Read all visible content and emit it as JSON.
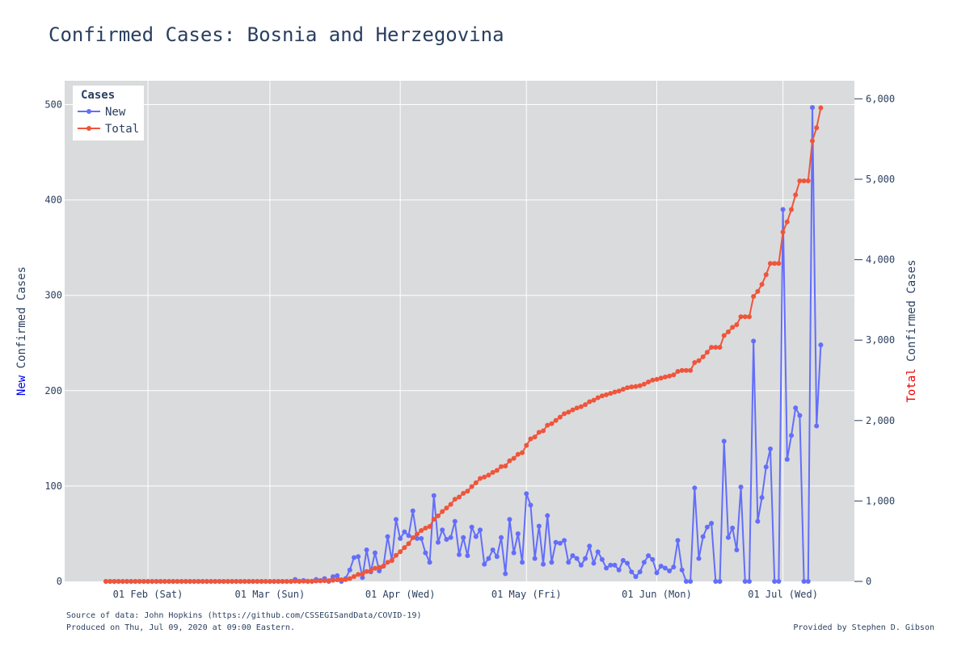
{
  "chart_data": {
    "type": "line",
    "title": "Confirmed Cases: Bosnia and Herzegovina",
    "x_axis": {
      "start_date": "2020-01-22",
      "end_date": "2020-07-08",
      "ticks": [
        {
          "date": "2020-02-01",
          "label": "01 Feb (Sat)"
        },
        {
          "date": "2020-03-01",
          "label": "01 Mar (Sun)"
        },
        {
          "date": "2020-04-01",
          "label": "01 Apr (Wed)"
        },
        {
          "date": "2020-05-01",
          "label": "01 May (Fri)"
        },
        {
          "date": "2020-06-01",
          "label": "01 Jun (Mon)"
        },
        {
          "date": "2020-07-01",
          "label": "01 Jul (Wed)"
        }
      ]
    },
    "y_left": {
      "title_highlight": "New",
      "title_rest": " Confirmed Cases",
      "highlight_color": "#0000ee",
      "range": [
        0,
        525
      ],
      "ticks": [
        0,
        100,
        200,
        300,
        400,
        500
      ],
      "tick_labels": [
        "0",
        "100",
        "200",
        "300",
        "400",
        "500"
      ]
    },
    "y_right": {
      "title_highlight": "Total",
      "title_rest": " Confirmed Cases",
      "highlight_color": "#ee0000",
      "range": [
        0,
        6225
      ],
      "ticks": [
        0,
        1000,
        2000,
        3000,
        4000,
        5000,
        6000
      ],
      "tick_labels": [
        "0",
        "1,000",
        "2,000",
        "3,000",
        "4,000",
        "5,000",
        "6,000"
      ]
    },
    "legend": {
      "title": "Cases",
      "placement": "top-left",
      "entries": [
        "New",
        "Total"
      ]
    },
    "grid": true,
    "series": [
      {
        "name": "New",
        "axis": "left",
        "color": "#636efa",
        "start_date": "2020-01-22",
        "values": [
          0,
          0,
          0,
          0,
          0,
          0,
          0,
          0,
          0,
          0,
          0,
          0,
          0,
          0,
          0,
          0,
          0,
          0,
          0,
          0,
          0,
          0,
          0,
          0,
          0,
          0,
          0,
          0,
          0,
          0,
          0,
          0,
          0,
          0,
          0,
          0,
          0,
          0,
          0,
          0,
          0,
          0,
          0,
          0,
          0,
          2,
          0,
          1,
          0,
          0,
          2,
          1,
          3,
          0,
          5,
          6,
          0,
          3,
          12,
          25,
          26,
          4,
          33,
          10,
          30,
          11,
          16,
          47,
          22,
          65,
          45,
          52,
          48,
          74,
          45,
          45,
          30,
          20,
          90,
          41,
          54,
          44,
          46,
          63,
          28,
          46,
          27,
          57,
          47,
          54,
          18,
          24,
          33,
          26,
          46,
          8,
          65,
          30,
          50,
          20,
          92,
          80,
          24,
          58,
          18,
          69,
          20,
          41,
          40,
          43,
          20,
          27,
          24,
          17,
          24,
          37,
          19,
          31,
          23,
          14,
          17,
          17,
          12,
          22,
          19,
          10,
          5,
          10,
          20,
          27,
          23,
          9,
          16,
          14,
          11,
          15,
          43,
          12,
          0,
          0,
          98,
          24,
          47,
          57,
          61,
          0,
          0,
          147,
          46,
          56,
          33,
          99,
          0,
          0,
          252,
          63,
          88,
          120,
          139,
          0,
          0,
          390,
          128,
          153,
          182,
          174,
          0,
          0,
          497,
          163,
          248
        ]
      },
      {
        "name": "Total",
        "axis": "right",
        "color": "#ef553b",
        "start_date": "2020-01-22",
        "values": [
          0,
          0,
          0,
          0,
          0,
          0,
          0,
          0,
          0,
          0,
          0,
          0,
          0,
          0,
          0,
          0,
          0,
          0,
          0,
          0,
          0,
          0,
          0,
          0,
          0,
          0,
          0,
          0,
          0,
          0,
          0,
          0,
          0,
          0,
          0,
          0,
          0,
          0,
          0,
          0,
          0,
          0,
          0,
          0,
          0,
          2,
          2,
          3,
          3,
          3,
          5,
          6,
          9,
          9,
          14,
          20,
          20,
          23,
          35,
          60,
          86,
          90,
          123,
          133,
          163,
          174,
          190,
          237,
          259,
          324,
          369,
          421,
          469,
          543,
          588,
          633,
          663,
          683,
          773,
          814,
          868,
          912,
          958,
          1021,
          1049,
          1095,
          1122,
          1179,
          1226,
          1280,
          1298,
          1322,
          1355,
          1381,
          1427,
          1435,
          1500,
          1530,
          1580,
          1600,
          1692,
          1772,
          1796,
          1854,
          1872,
          1941,
          1961,
          2002,
          2042,
          2085,
          2105,
          2132,
          2156,
          2173,
          2197,
          2234,
          2253,
          2284,
          2307,
          2321,
          2338,
          2355,
          2367,
          2389,
          2408,
          2418,
          2423,
          2433,
          2453,
          2480,
          2503,
          2512,
          2528,
          2542,
          2553,
          2568,
          2611,
          2623,
          2623,
          2623,
          2721,
          2745,
          2792,
          2849,
          2910,
          2910,
          2910,
          3057,
          3103,
          3159,
          3192,
          3291,
          3291,
          3291,
          3543,
          3606,
          3694,
          3814,
          3953,
          3953,
          3953,
          4343,
          4471,
          4624,
          4806,
          4980,
          4980,
          4980,
          5477,
          5640,
          5888
        ]
      }
    ],
    "notes": {
      "source": "Source of data: John Hopkins (https://github.com/CSSEGISandData/COVID-19)",
      "produced": "Produced on Thu, Jul 09, 2020 at 09:00 Eastern.",
      "credit": "Provided by Stephen D. Gibson"
    }
  }
}
